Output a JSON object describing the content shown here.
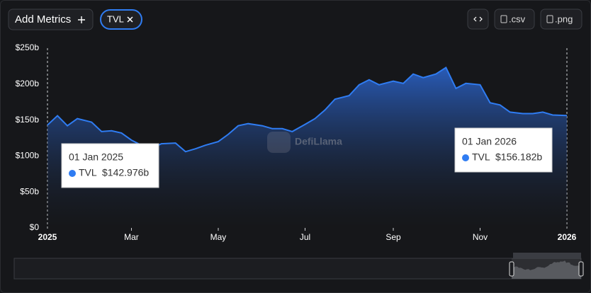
{
  "toolbar": {
    "add_metrics": "Add Metrics",
    "exports": [
      ".csv",
      ".png"
    ]
  },
  "watermark": "DefiLlama",
  "chart_data": {
    "type": "area",
    "x": [
      "2025-01-01",
      "2025-01-08",
      "2025-01-15",
      "2025-01-22",
      "2025-02-01",
      "2025-02-08",
      "2025-02-15",
      "2025-02-22",
      "2025-03-01",
      "2025-03-08",
      "2025-03-15",
      "2025-03-22",
      "2025-04-01",
      "2025-04-08",
      "2025-04-15",
      "2025-04-22",
      "2025-05-01",
      "2025-05-08",
      "2025-05-15",
      "2025-05-22",
      "2025-06-01",
      "2025-06-08",
      "2025-06-15",
      "2025-06-22",
      "2025-07-01",
      "2025-07-08",
      "2025-07-15",
      "2025-07-22",
      "2025-08-01",
      "2025-08-08",
      "2025-08-15",
      "2025-08-22",
      "2025-09-01",
      "2025-09-08",
      "2025-09-15",
      "2025-09-22",
      "2025-10-01",
      "2025-10-08",
      "2025-10-15",
      "2025-10-22",
      "2025-11-01",
      "2025-11-08",
      "2025-11-15",
      "2025-11-22",
      "2025-12-01",
      "2025-12-08",
      "2025-12-15",
      "2025-12-22",
      "2026-01-01"
    ],
    "x_labels": [
      "01 Jan 2025",
      null,
      null,
      null,
      null,
      null,
      null,
      null,
      null,
      null,
      null,
      null,
      null,
      null,
      null,
      null,
      null,
      null,
      null,
      null,
      null,
      null,
      null,
      null,
      null,
      null,
      null,
      null,
      null,
      null,
      null,
      null,
      null,
      null,
      null,
      null,
      null,
      null,
      null,
      null,
      null,
      null,
      null,
      null,
      null,
      null,
      null,
      null,
      "01 Jan 2026"
    ],
    "series": [
      {
        "name": "TVL",
        "color": "#2f7cf2",
        "values": [
          142.976,
          156,
          142,
          152,
          147,
          134,
          135,
          132,
          122,
          115,
          110,
          117,
          118,
          106,
          110,
          115,
          120,
          130,
          142,
          145,
          142,
          138,
          138,
          134,
          144,
          152,
          164,
          179,
          184,
          199,
          206,
          199,
          204,
          201,
          214,
          209,
          214,
          223,
          194,
          201,
          199,
          174,
          171,
          161,
          159,
          159,
          161,
          157,
          156.182
        ],
        "value_labels": [
          "$142.976b",
          null,
          null,
          null,
          null,
          null,
          null,
          null,
          null,
          null,
          null,
          null,
          null,
          null,
          null,
          null,
          null,
          null,
          null,
          null,
          null,
          null,
          null,
          null,
          null,
          null,
          null,
          null,
          null,
          null,
          null,
          null,
          null,
          null,
          null,
          null,
          null,
          null,
          null,
          null,
          null,
          null,
          null,
          null,
          null,
          null,
          null,
          null,
          "$156.182b"
        ]
      }
    ],
    "xlim": [
      "2025-01-01",
      "2026-01-01"
    ],
    "xticks": [
      {
        "value": "2025-01-01",
        "label": "2025"
      },
      {
        "value": "2025-03-01",
        "label": "Mar"
      },
      {
        "value": "2025-05-01",
        "label": "May"
      },
      {
        "value": "2025-07-01",
        "label": "Jul"
      },
      {
        "value": "2025-09-01",
        "label": "Sep"
      },
      {
        "value": "2025-11-01",
        "label": "Nov"
      },
      {
        "value": "2026-01-01",
        "label": "2026"
      }
    ],
    "ylim": [
      0,
      250
    ],
    "yticks": [
      {
        "value": 0,
        "label": "$0"
      },
      {
        "value": 50,
        "label": "$50b"
      },
      {
        "value": 100,
        "label": "$100b"
      },
      {
        "value": 150,
        "label": "$150b"
      },
      {
        "value": 200,
        "label": "$200b"
      },
      {
        "value": 250,
        "label": "$250b"
      }
    ]
  }
}
